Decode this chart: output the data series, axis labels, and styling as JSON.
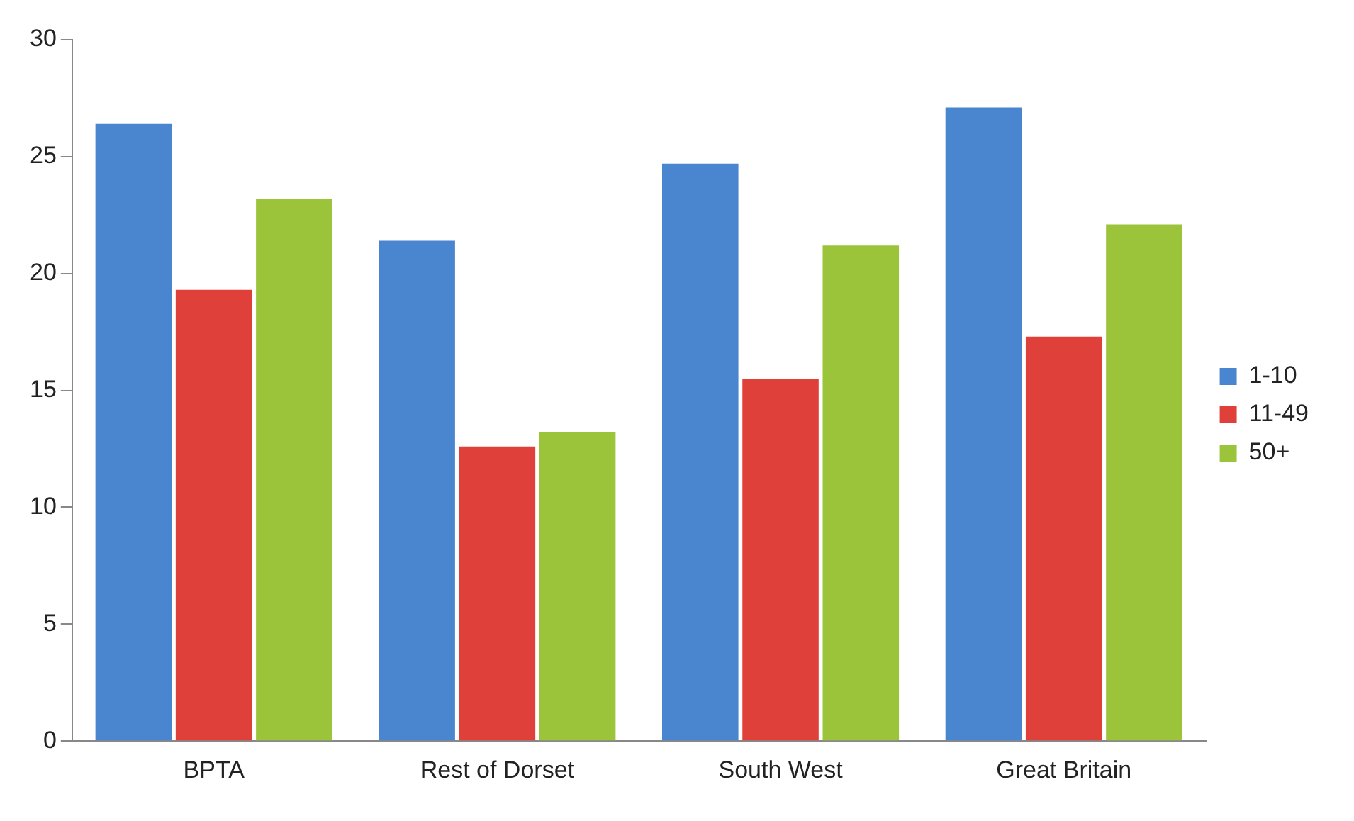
{
  "chart_data": {
    "type": "bar",
    "categories": [
      "BPTA",
      "Rest of Dorset",
      "South West",
      "Great Britain"
    ],
    "series": [
      {
        "name": "1-10",
        "color": "#4a86d0",
        "values": [
          26.4,
          21.4,
          24.7,
          27.1
        ]
      },
      {
        "name": "11-49",
        "color": "#e0403a",
        "values": [
          19.3,
          12.6,
          15.5,
          17.3
        ]
      },
      {
        "name": "50+",
        "color": "#9cc43a",
        "values": [
          23.2,
          13.2,
          21.2,
          22.1
        ]
      }
    ],
    "ylim": [
      0,
      30
    ],
    "yticks": [
      0,
      5,
      10,
      15,
      20,
      25,
      30
    ],
    "grid": false,
    "legend": "right"
  }
}
